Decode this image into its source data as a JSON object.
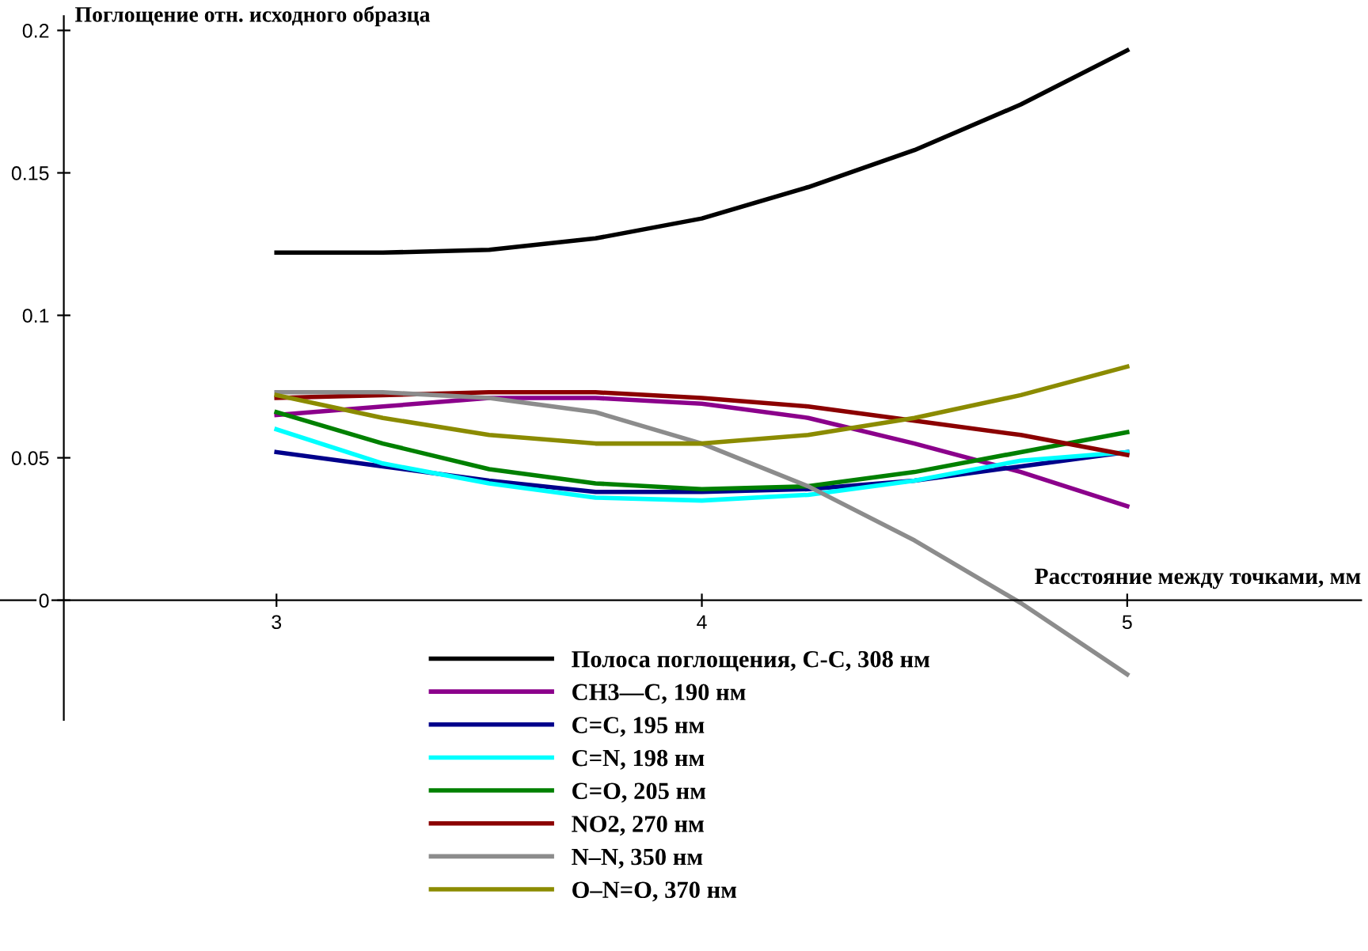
{
  "chart_data": {
    "type": "line",
    "xlabel": "Расстояние между точками, мм",
    "ylabel": "Поглощение отн. исходного образца",
    "x": [
      3,
      3.25,
      3.5,
      3.75,
      4,
      4.25,
      4.5,
      4.75,
      5
    ],
    "series": [
      {
        "name": "Полоса поглощения, С-С, 308 нм",
        "color": "#000000",
        "values": [
          0.122,
          0.122,
          0.123,
          0.127,
          0.134,
          0.145,
          0.158,
          0.174,
          0.193
        ]
      },
      {
        "name": "CH3—C, 190 нм",
        "color": "#8b008b",
        "values": [
          0.065,
          0.068,
          0.071,
          0.071,
          0.069,
          0.064,
          0.055,
          0.045,
          0.033
        ]
      },
      {
        "name": "C=C, 195 нм",
        "color": "#00008b",
        "values": [
          0.052,
          0.047,
          0.042,
          0.038,
          0.038,
          0.039,
          0.042,
          0.047,
          0.052
        ]
      },
      {
        "name": "C=N, 198 нм",
        "color": "#00ffff",
        "values": [
          0.06,
          0.048,
          0.041,
          0.036,
          0.035,
          0.037,
          0.042,
          0.049,
          0.052
        ]
      },
      {
        "name": "C=O, 205 нм",
        "color": "#008000",
        "values": [
          0.066,
          0.055,
          0.046,
          0.041,
          0.039,
          0.04,
          0.045,
          0.052,
          0.059
        ]
      },
      {
        "name": "NO2, 270 нм",
        "color": "#8b0000",
        "values": [
          0.071,
          0.072,
          0.073,
          0.073,
          0.071,
          0.068,
          0.063,
          0.058,
          0.051
        ]
      },
      {
        "name": "N–N, 350 нм",
        "color": "#8c8c8c",
        "values": [
          0.073,
          0.073,
          0.071,
          0.066,
          0.055,
          0.04,
          0.021,
          -0.001,
          -0.026
        ]
      },
      {
        "name": "O–N=O, 370 нм",
        "color": "#8b8b00",
        "values": [
          0.072,
          0.064,
          0.058,
          0.055,
          0.055,
          0.058,
          0.064,
          0.072,
          0.082
        ]
      }
    ],
    "xlim": [
      2.35,
      5.55
    ],
    "ylim": [
      -0.042,
      0.205
    ],
    "xticks": [
      3,
      4,
      5
    ],
    "yticks": [
      0,
      0.05,
      0.1,
      0.15,
      0.2
    ],
    "grid": false,
    "legend": "bottom",
    "marker": "none",
    "line_style": "solid"
  }
}
